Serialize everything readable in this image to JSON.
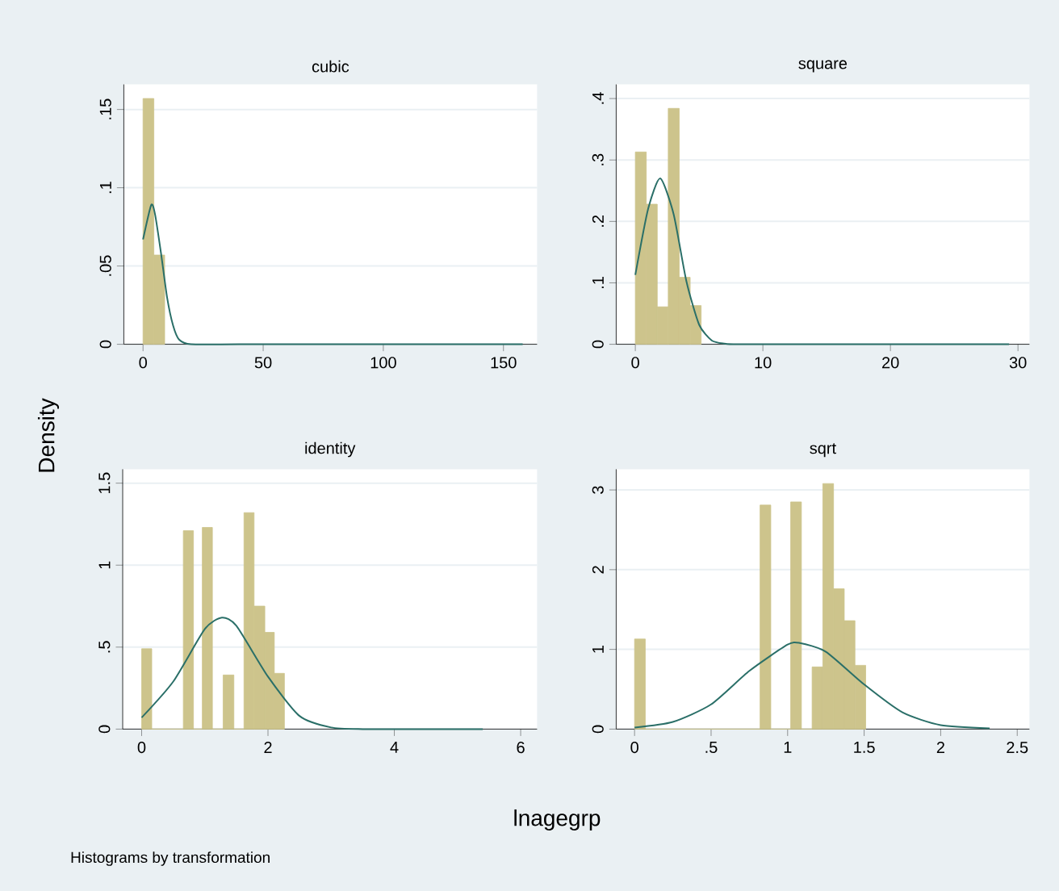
{
  "chart_data": [
    {
      "type": "histogram",
      "title": "cubic",
      "ylabel": "Density",
      "grid": "y",
      "xlim": [
        -8,
        164
      ],
      "ylim": [
        0,
        0.166
      ],
      "xticks": [
        0,
        50,
        100,
        150
      ],
      "yticks": [
        0,
        {
          "value": 0.05,
          "label": ".05"
        },
        {
          "value": 0.1,
          "label": ".1"
        },
        {
          "value": 0.15,
          "label": ".15"
        }
      ],
      "series": [
        {
          "color": "#cdc48c",
          "bins": [
            0,
            4.5,
            9
          ],
          "values": [
            0.157,
            0.057
          ]
        },
        {
          "type": "line",
          "color": "#2a6f68",
          "x": [
            0,
            3.4,
            5,
            7.5,
            10,
            12.5,
            15,
            20,
            40,
            80,
            158
          ],
          "values": [
            0.067,
            0.089,
            0.083,
            0.058,
            0.03,
            0.012,
            0.003,
            0,
            0,
            0,
            0
          ]
        }
      ]
    },
    {
      "type": "histogram",
      "title": "square",
      "grid": "y",
      "xlim": [
        -1.5,
        30.9
      ],
      "ylim": [
        0,
        0.423
      ],
      "xticks": [
        0,
        10,
        20,
        30
      ],
      "yticks": [
        0,
        {
          "value": 0.1,
          "label": ".1"
        },
        {
          "value": 0.2,
          "label": ".2"
        },
        {
          "value": 0.3,
          "label": ".3"
        },
        {
          "value": 0.4,
          "label": ".4"
        }
      ],
      "series": [
        {
          "color": "#cdc48c",
          "bins": [
            0,
            0.86,
            1.72,
            2.58,
            3.44,
            4.3,
            5.16
          ],
          "values": [
            0.313,
            0.228,
            0.061,
            0.384,
            0.109,
            0.063
          ]
        },
        {
          "type": "line",
          "color": "#2a6f68",
          "x": [
            0,
            1,
            1.95,
            3,
            4,
            5,
            6,
            7,
            8,
            15,
            29.3
          ],
          "values": [
            0.113,
            0.22,
            0.27,
            0.212,
            0.103,
            0.032,
            0.006,
            0.001,
            0,
            0,
            0
          ]
        }
      ]
    },
    {
      "type": "histogram",
      "title": "identity",
      "xlabel": "lnagegrp",
      "annotations": [
        "Histograms by transformation"
      ],
      "grid": "y",
      "xlim": [
        -0.3,
        6.26
      ],
      "ylim": [
        0,
        1.585
      ],
      "xticks": [
        0,
        2,
        4,
        6
      ],
      "yticks": [
        0,
        {
          "value": 0.5,
          "label": ".5"
        },
        1,
        1.5
      ],
      "series": [
        {
          "color": "#cdc48c",
          "bins": [
            0,
            0.16,
            0.66,
            0.82,
            0.96,
            1.12,
            1.29,
            1.46,
            1.62,
            1.78,
            1.95,
            2.1,
            2.26
          ],
          "values": [
            0.49,
            0,
            1.21,
            0,
            1.23,
            0,
            0.33,
            0,
            1.32,
            0.75,
            0.59,
            0.34
          ]
        },
        {
          "type": "line",
          "color": "#2a6f68",
          "x": [
            0,
            0.5,
            1,
            1.27,
            1.5,
            2,
            2.5,
            3,
            3.5,
            4,
            5.4
          ],
          "values": [
            0.07,
            0.29,
            0.61,
            0.68,
            0.63,
            0.32,
            0.08,
            0.01,
            0,
            0,
            0
          ]
        }
      ]
    },
    {
      "type": "histogram",
      "title": "sqrt",
      "grid": "y",
      "xlim": [
        -0.12,
        2.58
      ],
      "ylim": [
        0,
        3.26
      ],
      "xticks": [
        0,
        {
          "value": 0.5,
          "label": ".5"
        },
        1,
        1.5,
        2,
        2.5
      ],
      "yticks": [
        0,
        1,
        2,
        3
      ],
      "series": [
        {
          "color": "#cdc48c",
          "bins": [
            0,
            0.07,
            0.82,
            0.89,
            1.02,
            1.09,
            1.16,
            1.23,
            1.3,
            1.37,
            1.44,
            1.51
          ],
          "values": [
            1.13,
            0,
            2.81,
            0,
            2.85,
            0,
            0.78,
            3.08,
            1.76,
            1.36,
            0.8
          ]
        },
        {
          "type": "line",
          "color": "#2a6f68",
          "x": [
            0,
            0.25,
            0.5,
            0.75,
            1,
            1.08,
            1.25,
            1.5,
            1.75,
            2,
            2.32
          ],
          "values": [
            0.02,
            0.09,
            0.31,
            0.73,
            1.06,
            1.08,
            0.97,
            0.56,
            0.21,
            0.05,
            0.01
          ]
        }
      ]
    }
  ]
}
